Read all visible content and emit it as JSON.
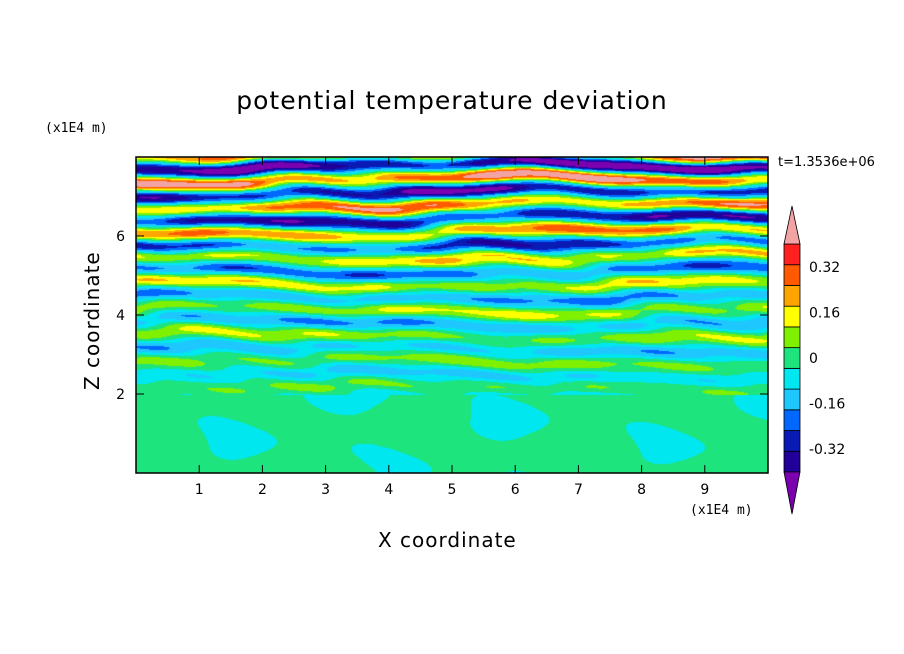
{
  "chart_data": {
    "type": "heatmap",
    "title": "potential temperature deviation",
    "xlabel": "X coordinate",
    "ylabel": "Z coordinate",
    "x_unit": "(x1E4 m)",
    "y_unit": "(x1E4 m)",
    "time_label": "t=1.3536e+06",
    "xlim": [
      0,
      10
    ],
    "ylim": [
      0,
      8
    ],
    "x_ticks": [
      "1",
      "2",
      "3",
      "4",
      "5",
      "6",
      "7",
      "8",
      "9"
    ],
    "y_ticks": [
      "2",
      "4",
      "6"
    ],
    "colorbar": {
      "levels": [
        -0.48,
        -0.4,
        -0.32,
        -0.24,
        -0.16,
        -0.08,
        0,
        0.08,
        0.16,
        0.24,
        0.32,
        0.4,
        0.48
      ],
      "labels": [
        "-0.32",
        "-0.16",
        "0",
        "0.16",
        "0.32"
      ],
      "label_values": [
        -0.32,
        -0.16,
        0,
        0.16,
        0.32
      ],
      "colors": [
        "#7b00b0",
        "#21009a",
        "#0a1ab4",
        "#0068ff",
        "#1ec8ff",
        "#00e7f0",
        "#1ee47d",
        "#7ff000",
        "#ffff00",
        "#ffa500",
        "#ff5a00",
        "#ff2020",
        "#f3a3a3"
      ],
      "extend": "both"
    },
    "description_regions": [
      {
        "z_range": [
          0,
          2
        ],
        "pattern": "weak deviations, mostly 0 to 0.08 with patches of -0.08 to 0"
      },
      {
        "z_range": [
          2,
          5.5
        ],
        "pattern": "horizontally elongated layered bands ranging roughly -0.4 to 0.3"
      },
      {
        "z_range": [
          5.5,
          8
        ],
        "pattern": "strong layered bands, extremes below -0.4 and above 0.4"
      }
    ]
  }
}
